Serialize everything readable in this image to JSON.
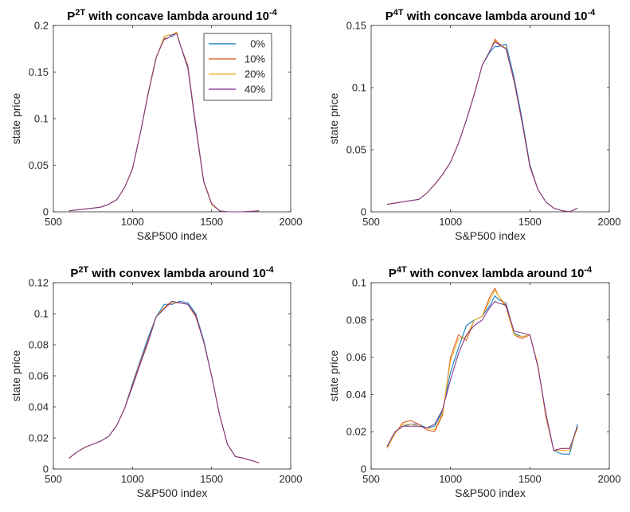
{
  "chart_data": [
    {
      "type": "line",
      "title": {
        "base": "P",
        "sup": "2T",
        "text": " with concave lambda around 10",
        "exp": "-4"
      },
      "xlabel": "S&P500 index",
      "ylabel": "state price",
      "xlim": [
        500,
        2000
      ],
      "ylim": [
        0,
        0.2
      ],
      "xticks": [
        "500",
        "1000",
        "1500",
        "2000"
      ],
      "yticks": [
        "0",
        "0.05",
        "0.1",
        "0.15",
        "0.2"
      ],
      "legend": {
        "placement": "top-right",
        "entries": [
          "0%",
          "10%",
          "20%",
          "40%"
        ]
      },
      "x": [
        600,
        700,
        800,
        850,
        900,
        950,
        1000,
        1050,
        1100,
        1150,
        1200,
        1230,
        1250,
        1280,
        1300,
        1350,
        1400,
        1450,
        1500,
        1550,
        1600,
        1700,
        1800
      ],
      "series": [
        {
          "name": "0%",
          "values": [
            0.001,
            0.003,
            0.005,
            0.008,
            0.013,
            0.026,
            0.046,
            0.085,
            0.127,
            0.165,
            0.188,
            0.19,
            0.188,
            0.192,
            0.18,
            0.154,
            0.09,
            0.032,
            0.008,
            0.001,
            0.0,
            0.0,
            0.001
          ]
        },
        {
          "name": "10%",
          "values": [
            0.001,
            0.003,
            0.005,
            0.008,
            0.013,
            0.026,
            0.046,
            0.085,
            0.128,
            0.166,
            0.186,
            0.187,
            0.19,
            0.192,
            0.18,
            0.157,
            0.093,
            0.033,
            0.008,
            0.001,
            0.0,
            0.0,
            0.001
          ]
        },
        {
          "name": "20%",
          "values": [
            0.001,
            0.003,
            0.005,
            0.008,
            0.013,
            0.026,
            0.046,
            0.085,
            0.127,
            0.165,
            0.188,
            0.19,
            0.19,
            0.193,
            0.18,
            0.155,
            0.091,
            0.032,
            0.008,
            0.001,
            0.0,
            0.0,
            0.001
          ]
        },
        {
          "name": "40%",
          "values": [
            0.001,
            0.003,
            0.005,
            0.008,
            0.013,
            0.026,
            0.046,
            0.085,
            0.128,
            0.166,
            0.185,
            0.187,
            0.19,
            0.191,
            0.18,
            0.155,
            0.092,
            0.033,
            0.009,
            0.001,
            0.0,
            0.0,
            0.001
          ]
        }
      ]
    },
    {
      "type": "line",
      "title": {
        "base": "P",
        "sup": "4T",
        "text": " with concave lambda around 10",
        "exp": "-4"
      },
      "xlabel": "S&P500 index",
      "ylabel": "state price",
      "xlim": [
        500,
        2000
      ],
      "ylim": [
        0,
        0.15
      ],
      "xticks": [
        "500",
        "1000",
        "1500",
        "2000"
      ],
      "yticks": [
        "0",
        "0.05",
        "0.1",
        "0.15"
      ],
      "x": [
        600,
        700,
        800,
        850,
        900,
        950,
        1000,
        1050,
        1100,
        1150,
        1200,
        1250,
        1280,
        1300,
        1350,
        1400,
        1450,
        1500,
        1550,
        1600,
        1650,
        1700,
        1750,
        1800
      ],
      "series": [
        {
          "name": "0%",
          "values": [
            0.006,
            0.008,
            0.01,
            0.015,
            0.022,
            0.03,
            0.04,
            0.055,
            0.074,
            0.095,
            0.118,
            0.129,
            0.133,
            0.133,
            0.135,
            0.108,
            0.075,
            0.038,
            0.018,
            0.008,
            0.003,
            0.001,
            0.0,
            0.003
          ]
        },
        {
          "name": "10%",
          "values": [
            0.006,
            0.008,
            0.01,
            0.015,
            0.022,
            0.03,
            0.04,
            0.055,
            0.074,
            0.095,
            0.118,
            0.13,
            0.139,
            0.136,
            0.131,
            0.105,
            0.072,
            0.036,
            0.018,
            0.008,
            0.003,
            0.001,
            0.0,
            0.003
          ]
        },
        {
          "name": "20%",
          "values": [
            0.006,
            0.008,
            0.01,
            0.015,
            0.022,
            0.03,
            0.04,
            0.055,
            0.074,
            0.095,
            0.118,
            0.13,
            0.138,
            0.135,
            0.132,
            0.106,
            0.073,
            0.037,
            0.018,
            0.008,
            0.003,
            0.001,
            0.0,
            0.003
          ]
        },
        {
          "name": "40%",
          "values": [
            0.006,
            0.008,
            0.01,
            0.015,
            0.022,
            0.03,
            0.04,
            0.055,
            0.074,
            0.095,
            0.118,
            0.13,
            0.137,
            0.135,
            0.131,
            0.106,
            0.073,
            0.037,
            0.018,
            0.008,
            0.003,
            0.001,
            0.0,
            0.003
          ]
        }
      ]
    },
    {
      "type": "line",
      "title": {
        "base": "P",
        "sup": "2T",
        "text": " with convex lambda around 10",
        "exp": "-4"
      },
      "xlabel": "S&P500 index",
      "ylabel": "state price",
      "xlim": [
        500,
        2000
      ],
      "ylim": [
        0,
        0.12
      ],
      "xticks": [
        "500",
        "1000",
        "1500",
        "2000"
      ],
      "yticks": [
        "0",
        "0.02",
        "0.04",
        "0.06",
        "0.08",
        "0.1",
        "0.12"
      ],
      "x": [
        600,
        650,
        700,
        750,
        800,
        850,
        900,
        950,
        1000,
        1050,
        1100,
        1150,
        1200,
        1250,
        1300,
        1350,
        1400,
        1450,
        1500,
        1550,
        1600,
        1650,
        1700,
        1800
      ],
      "series": [
        {
          "name": "0%",
          "values": [
            0.007,
            0.011,
            0.014,
            0.016,
            0.018,
            0.021,
            0.028,
            0.039,
            0.055,
            0.07,
            0.085,
            0.098,
            0.106,
            0.106,
            0.108,
            0.107,
            0.1,
            0.083,
            0.06,
            0.035,
            0.016,
            0.008,
            0.007,
            0.004
          ]
        },
        {
          "name": "10%",
          "values": [
            0.007,
            0.011,
            0.014,
            0.016,
            0.018,
            0.021,
            0.028,
            0.039,
            0.054,
            0.069,
            0.083,
            0.098,
            0.104,
            0.108,
            0.107,
            0.106,
            0.098,
            0.082,
            0.06,
            0.035,
            0.016,
            0.008,
            0.007,
            0.004
          ]
        },
        {
          "name": "20%",
          "values": [
            0.007,
            0.011,
            0.014,
            0.016,
            0.018,
            0.021,
            0.028,
            0.039,
            0.053,
            0.068,
            0.082,
            0.098,
            0.104,
            0.107,
            0.107,
            0.106,
            0.099,
            0.082,
            0.06,
            0.035,
            0.016,
            0.008,
            0.007,
            0.004
          ]
        },
        {
          "name": "40%",
          "values": [
            0.007,
            0.011,
            0.014,
            0.016,
            0.018,
            0.021,
            0.028,
            0.039,
            0.053,
            0.068,
            0.082,
            0.098,
            0.103,
            0.108,
            0.107,
            0.106,
            0.099,
            0.082,
            0.06,
            0.035,
            0.016,
            0.008,
            0.007,
            0.004
          ]
        }
      ]
    },
    {
      "type": "line",
      "title": {
        "base": "P",
        "sup": "4T",
        "text": " with convex lambda around 10",
        "exp": "-4"
      },
      "xlabel": "S&P500 index",
      "ylabel": "state price",
      "xlim": [
        500,
        2000
      ],
      "ylim": [
        0,
        0.1
      ],
      "xticks": [
        "500",
        "1000",
        "1500",
        "2000"
      ],
      "yticks": [
        "0",
        "0.02",
        "0.04",
        "0.06",
        "0.08",
        "0.1"
      ],
      "x": [
        600,
        650,
        700,
        750,
        800,
        850,
        900,
        950,
        1000,
        1050,
        1100,
        1150,
        1200,
        1250,
        1280,
        1300,
        1350,
        1400,
        1450,
        1500,
        1550,
        1600,
        1650,
        1700,
        1750,
        1800
      ],
      "series": [
        {
          "name": "0%",
          "values": [
            0.012,
            0.02,
            0.023,
            0.024,
            0.024,
            0.022,
            0.023,
            0.031,
            0.052,
            0.065,
            0.077,
            0.08,
            0.082,
            0.088,
            0.093,
            0.091,
            0.089,
            0.073,
            0.071,
            0.072,
            0.055,
            0.03,
            0.01,
            0.008,
            0.008,
            0.024
          ]
        },
        {
          "name": "10%",
          "values": [
            0.011,
            0.019,
            0.025,
            0.026,
            0.024,
            0.021,
            0.02,
            0.029,
            0.06,
            0.072,
            0.069,
            0.08,
            0.082,
            0.093,
            0.097,
            0.093,
            0.087,
            0.072,
            0.07,
            0.072,
            0.056,
            0.028,
            0.01,
            0.011,
            0.011,
            0.022
          ]
        },
        {
          "name": "20%",
          "values": [
            0.011,
            0.019,
            0.024,
            0.024,
            0.023,
            0.022,
            0.021,
            0.03,
            0.058,
            0.07,
            0.071,
            0.08,
            0.082,
            0.091,
            0.096,
            0.093,
            0.088,
            0.072,
            0.071,
            0.072,
            0.056,
            0.029,
            0.01,
            0.01,
            0.01,
            0.022
          ]
        },
        {
          "name": "40%",
          "values": [
            0.012,
            0.02,
            0.023,
            0.023,
            0.023,
            0.022,
            0.024,
            0.032,
            0.048,
            0.062,
            0.072,
            0.077,
            0.08,
            0.087,
            0.09,
            0.089,
            0.088,
            0.074,
            0.073,
            0.072,
            0.055,
            0.03,
            0.01,
            0.011,
            0.011,
            0.023
          ]
        }
      ]
    }
  ],
  "series_colors": [
    "#0072BD",
    "#D95319",
    "#EDB120",
    "#7E2F8E"
  ]
}
